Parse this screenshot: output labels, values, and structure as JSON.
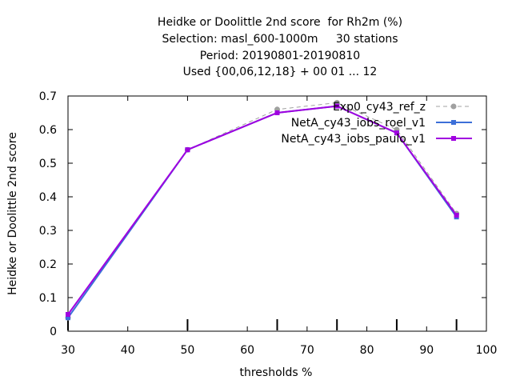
{
  "chart_data": {
    "type": "line",
    "title_lines": [
      "Heidke or Doolittle 2nd score  for Rh2m (%)",
      "Selection: masl_600-1000m     30 stations",
      "Period: 20190801-20190810",
      "Used {00,06,12,18} + 00 01 ... 12"
    ],
    "xlabel": "thresholds %",
    "ylabel": "Heidke or Doolittle 2nd score",
    "xlim": [
      30,
      100
    ],
    "ylim": [
      0,
      0.7
    ],
    "x_ticks": [
      "30",
      "40",
      "50",
      "60",
      "70",
      "80",
      "90",
      "100"
    ],
    "y_ticks": [
      "0",
      "0.1",
      "0.2",
      "0.3",
      "0.4",
      "0.5",
      "0.6",
      "0.7"
    ],
    "grid": false,
    "legend_position": "top-right",
    "x": [
      30,
      50,
      65,
      75,
      85,
      95
    ],
    "series": [
      {
        "name": "Exp0_cy43_ref_z",
        "color": "#a0a0a0",
        "dashed": true,
        "marker": "circle",
        "values": [
          0.04,
          0.54,
          0.66,
          0.68,
          0.6,
          0.35
        ]
      },
      {
        "name": "NetA_cy43_iobs_roel_v1",
        "color": "#3c6fd8",
        "dashed": false,
        "marker": "square",
        "values": [
          0.04,
          0.54,
          0.65,
          0.67,
          0.59,
          0.34
        ]
      },
      {
        "name": "NetA_cy43_iobs_paulo_v1",
        "color": "#a000e0",
        "dashed": false,
        "marker": "square",
        "values": [
          0.05,
          0.54,
          0.65,
          0.67,
          0.59,
          0.345
        ]
      }
    ]
  }
}
